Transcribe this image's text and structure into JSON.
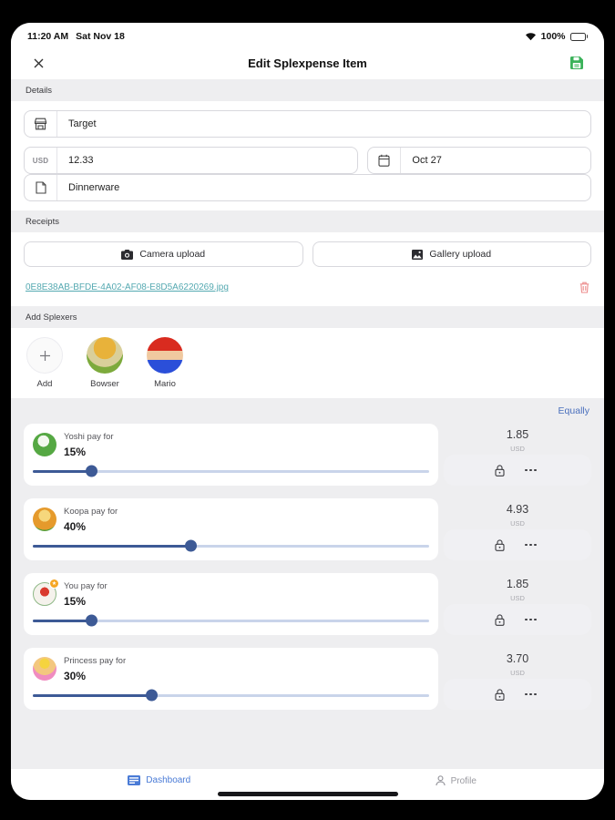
{
  "status_bar": {
    "time": "11:20 AM",
    "date": "Sat Nov 18",
    "battery_percent": "100%"
  },
  "header": {
    "title": "Edit Splexpense Item"
  },
  "details": {
    "section_label": "Details",
    "merchant_value": "Target",
    "currency_prefix": "USD",
    "amount_value": "12.33",
    "date_value": "Oct 27",
    "description_value": "Dinnerware"
  },
  "receipts": {
    "section_label": "Receipts",
    "camera_button_label": "Camera upload",
    "gallery_button_label": "Gallery upload",
    "file_link": "0E8E38AB-BFDE-4A02-AF08-E8D5A6220269.jpg"
  },
  "splexers": {
    "section_label": "Add Splexers",
    "add_label": "Add",
    "members": [
      {
        "name": "Bowser"
      },
      {
        "name": "Mario"
      }
    ],
    "equally_link": "Equally"
  },
  "splits": [
    {
      "name": "Yoshi",
      "label": "Yoshi pay for",
      "percent": "15%",
      "percent_value": 15,
      "amount": "1.85",
      "currency": "USD"
    },
    {
      "name": "Koopa",
      "label": "Koopa pay for",
      "percent": "40%",
      "percent_value": 40,
      "amount": "4.93",
      "currency": "USD"
    },
    {
      "name": "You",
      "label": "You pay for",
      "percent": "15%",
      "percent_value": 15,
      "amount": "1.85",
      "currency": "USD"
    },
    {
      "name": "Princess",
      "label": "Princess pay for",
      "percent": "30%",
      "percent_value": 30,
      "amount": "3.70",
      "currency": "USD"
    }
  ],
  "bottom_nav": {
    "dashboard_label": "Dashboard",
    "profile_label": "Profile"
  },
  "colors": {
    "accent_blue": "#4a6fbd",
    "slider_blue": "#3d5a96",
    "link_teal": "#55a9b1",
    "save_green": "#3bb25a",
    "danger_red": "#ec8b8b"
  }
}
